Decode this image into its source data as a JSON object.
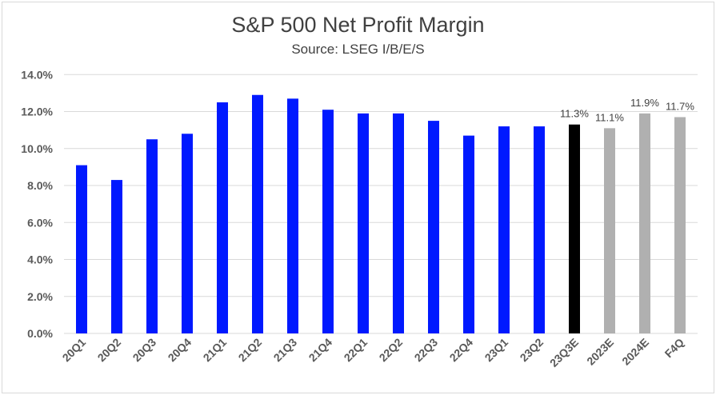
{
  "chart_data": {
    "type": "bar",
    "title": "S&P 500 Net Profit Margin",
    "subtitle": "Source: LSEG I/B/E/S",
    "xlabel": "",
    "ylabel": "",
    "ylim": [
      0,
      14
    ],
    "yticks": [
      "0.0%",
      "2.0%",
      "4.0%",
      "6.0%",
      "8.0%",
      "10.0%",
      "12.0%",
      "14.0%"
    ],
    "grid": true,
    "categories": [
      "20Q1",
      "20Q2",
      "20Q3",
      "20Q4",
      "21Q1",
      "21Q2",
      "21Q3",
      "21Q4",
      "22Q1",
      "22Q2",
      "22Q3",
      "22Q4",
      "23Q1",
      "23Q2",
      "23Q3E",
      "2023E",
      "2024E",
      "F4Q"
    ],
    "values": [
      9.1,
      8.3,
      10.5,
      10.8,
      12.5,
      12.9,
      12.7,
      12.1,
      11.9,
      11.9,
      11.5,
      10.7,
      11.2,
      11.2,
      11.3,
      11.1,
      11.9,
      11.7
    ],
    "data_labels": [
      "",
      "",
      "",
      "",
      "",
      "",
      "",
      "",
      "",
      "",
      "",
      "",
      "",
      "",
      "11.3%",
      "11.1%",
      "11.9%",
      "11.7%"
    ],
    "bar_colors": [
      "#0019ff",
      "#0019ff",
      "#0019ff",
      "#0019ff",
      "#0019ff",
      "#0019ff",
      "#0019ff",
      "#0019ff",
      "#0019ff",
      "#0019ff",
      "#0019ff",
      "#0019ff",
      "#0019ff",
      "#0019ff",
      "#000000",
      "#b0b0b0",
      "#b0b0b0",
      "#b0b0b0"
    ]
  }
}
